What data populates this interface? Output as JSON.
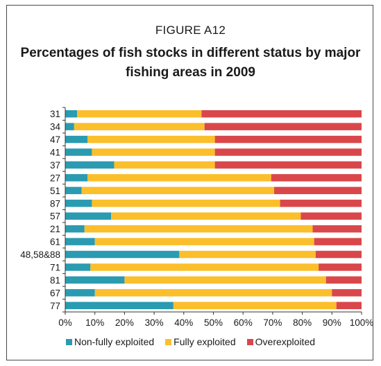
{
  "figure_label": "FIGURE A12",
  "chart_data": {
    "type": "bar",
    "orientation": "horizontal",
    "stacked": "percent",
    "title": "Percentages of fish stocks in different status by major fishing areas in 2009",
    "xlabel": "",
    "ylabel": "",
    "xlim": [
      0,
      100
    ],
    "xticks": [
      "0%",
      "10%",
      "20%",
      "30%",
      "40%",
      "50%",
      "60%",
      "70%",
      "80%",
      "90%",
      "100%"
    ],
    "categories": [
      "31",
      "34",
      "47",
      "41",
      "37",
      "27",
      "51",
      "87",
      "57",
      "21",
      "61",
      "48,58&88",
      "71",
      "81",
      "67",
      "77"
    ],
    "series": [
      {
        "name": "Non-fully exploited",
        "color": "#2a9bb0",
        "values": [
          4,
          3,
          7.5,
          9,
          16.5,
          7.5,
          5.5,
          9,
          15.5,
          6.5,
          10,
          38.5,
          8.5,
          20,
          10,
          36.5
        ]
      },
      {
        "name": "Fully exploited",
        "color": "#fbbf2c",
        "values": [
          42,
          44,
          43,
          41.5,
          34,
          62,
          65,
          63.5,
          64,
          77,
          74,
          46,
          77,
          68,
          80,
          55
        ]
      },
      {
        "name": "Overexploited",
        "color": "#d9474b",
        "values": [
          54,
          53,
          49.5,
          49.5,
          49.5,
          30.5,
          29.5,
          27.5,
          20.5,
          16.5,
          16,
          15.5,
          14.5,
          12,
          10,
          8.5
        ]
      }
    ],
    "grid": false,
    "legend_position": "bottom"
  }
}
